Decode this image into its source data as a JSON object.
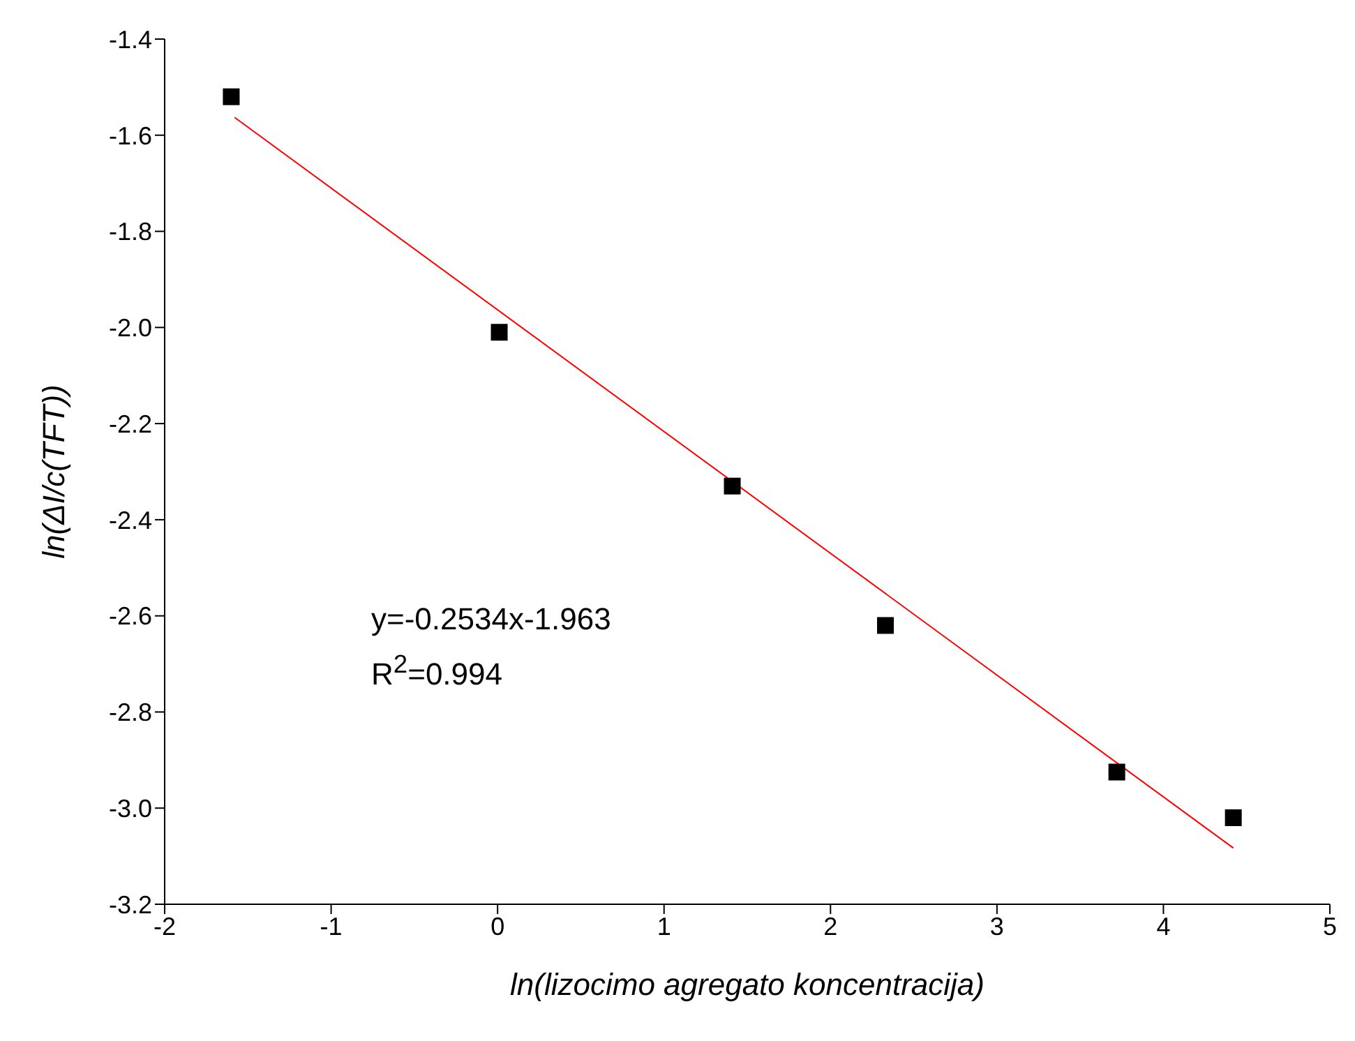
{
  "chart_data": {
    "type": "scatter",
    "xlabel": "ln(lizocimo agregato koncentracija)",
    "ylabel": "ln(ΔI/c(TFT))",
    "series": [
      {
        "marker": "square",
        "color": "#000000",
        "x": [
          -1.6,
          0.01,
          1.41,
          2.33,
          3.72,
          4.42
        ],
        "values": [
          -1.52,
          -2.01,
          -2.33,
          -2.62,
          -2.925,
          -3.02
        ]
      },
      {
        "type": "line",
        "marker": "none",
        "color": "#ff0000",
        "x": [
          -1.58,
          4.42
        ],
        "values": [
          -1.563,
          -3.083
        ]
      }
    ],
    "xlim": [
      -2,
      5
    ],
    "xticks": [
      -2,
      -1,
      0,
      1,
      2,
      3,
      4,
      5
    ],
    "ylim": [
      -3.2,
      -1.4
    ],
    "yticks": [
      -3.2,
      {
        "value": -3,
        "label": "-3.0"
      },
      -2.8,
      -2.6,
      -2.4,
      -2.2,
      {
        "value": -2,
        "label": "-2.0"
      },
      -1.8,
      -1.6,
      -1.4
    ],
    "annotations": [
      "y=-0.2534x-1.963",
      "R$^{2}$=0.994"
    ],
    "grid": false,
    "legend": false
  }
}
